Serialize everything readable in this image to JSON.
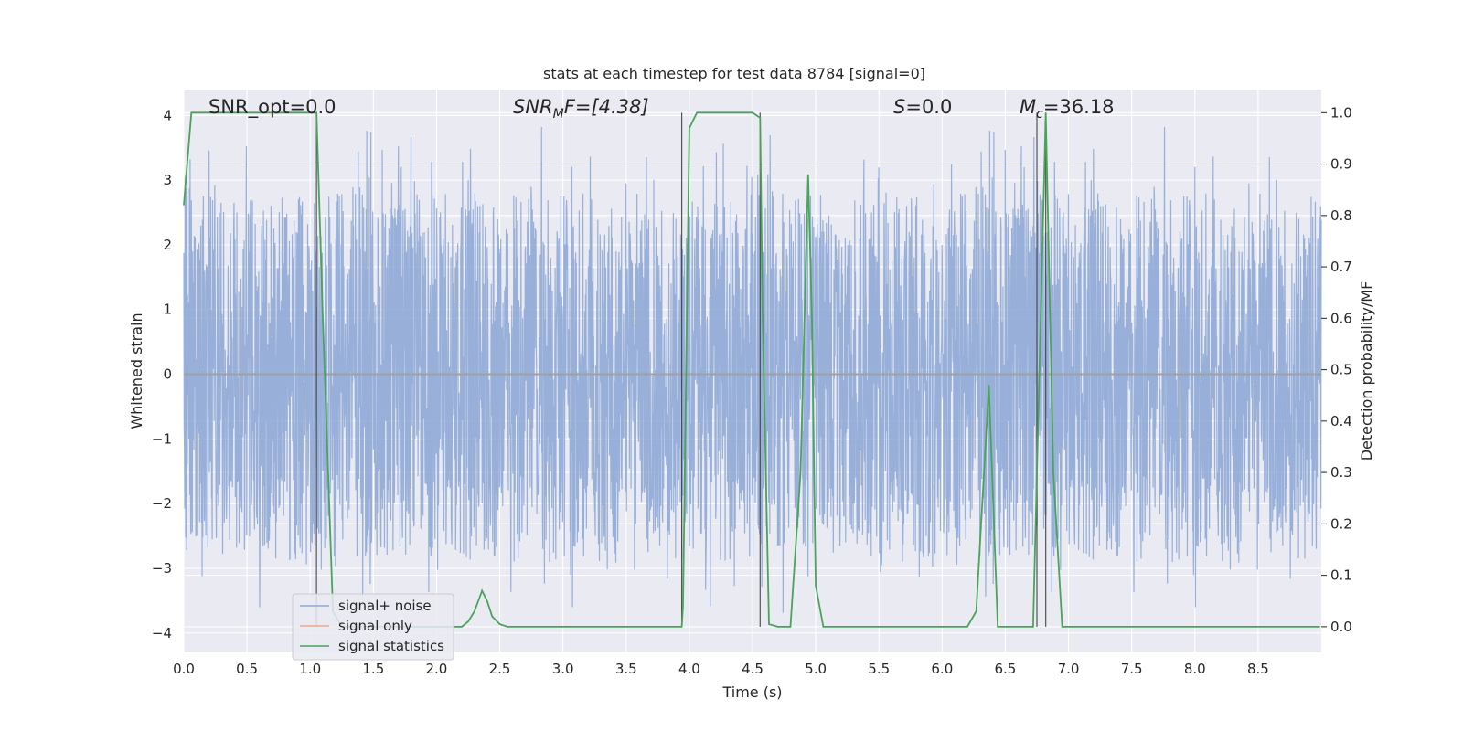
{
  "chart_data": {
    "type": "line",
    "title": "stats at each timestep for test data 8784 [signal=0]",
    "xlabel": "Time (s)",
    "ylabel_left": "Whitened strain",
    "ylabel_right": "Detection probability/MF",
    "xlim": [
      0.0,
      9.0
    ],
    "ylim_left": [
      -4.3,
      4.4
    ],
    "ylim_right": [
      -0.05,
      1.045
    ],
    "x_ticks": [
      "0.0",
      "0.5",
      "1.0",
      "1.5",
      "2.0",
      "2.5",
      "3.0",
      "3.5",
      "4.0",
      "4.5",
      "5.0",
      "5.5",
      "6.0",
      "6.5",
      "7.0",
      "7.5",
      "8.0",
      "8.5"
    ],
    "y_left_ticks": [
      "4",
      "3",
      "2",
      "1",
      "0",
      "−1",
      "−2",
      "−3",
      "−4"
    ],
    "y_right_ticks": [
      "1.0",
      "0.9",
      "0.8",
      "0.7",
      "0.6",
      "0.5",
      "0.4",
      "0.3",
      "0.2",
      "0.1",
      "0.0"
    ],
    "grid": true,
    "annotations": {
      "snr_opt": "SNR_opt=0.0",
      "snr_mf_base": "SNR",
      "snr_mf_sub": "M",
      "snr_mf_rest": "F=[4.38]",
      "s_base": "S",
      "s_rest": "=0.0",
      "mc_base": "M",
      "mc_sub": "c",
      "mc_rest": "=36.18"
    },
    "legend": {
      "position": "lower-left",
      "entries": [
        {
          "label": "signal+ noise",
          "color": "#8faad6"
        },
        {
          "label": "signal only",
          "color": "#f0a58a"
        },
        {
          "label": "signal statistics",
          "color": "#4aa35a"
        }
      ]
    },
    "vertical_markers_x": [
      1.05,
      3.94,
      4.56,
      6.75,
      6.82
    ],
    "series": [
      {
        "name": "signal+ noise",
        "color": "#8faad6",
        "noise_envelope": {
          "core_amplitude": 1.6,
          "max_positive": 3.85,
          "min_negative": -3.95,
          "samples": 3600
        }
      },
      {
        "name": "signal only",
        "color": "#f0a58a",
        "values_constant": 0
      },
      {
        "name": "signal statistics",
        "color": "#4aa35a",
        "x": [
          0.0,
          0.06,
          0.1,
          0.2,
          0.5,
          1.0,
          1.05,
          1.1,
          1.18,
          1.25,
          1.4,
          2.0,
          2.2,
          2.25,
          2.3,
          2.36,
          2.4,
          2.44,
          2.5,
          2.56,
          3.0,
          3.5,
          3.94,
          3.95,
          4.0,
          4.06,
          4.2,
          4.5,
          4.56,
          4.58,
          4.63,
          4.7,
          4.8,
          4.88,
          4.94,
          4.97,
          5.0,
          5.06,
          5.5,
          6.2,
          6.27,
          6.37,
          6.44,
          6.6,
          6.72,
          6.82,
          6.88,
          6.95,
          7.5,
          8.5,
          8.99
        ],
        "values": [
          0.82,
          1.0,
          1.0,
          1.0,
          1.0,
          1.0,
          1.0,
          0.6,
          0.03,
          0.0,
          0.0,
          0.0,
          0.0,
          0.01,
          0.03,
          0.07,
          0.05,
          0.02,
          0.005,
          0.0,
          0.0,
          0.0,
          0.0,
          0.04,
          0.97,
          1.0,
          1.0,
          1.0,
          0.99,
          0.6,
          0.005,
          0.0,
          0.0,
          0.3,
          0.88,
          0.6,
          0.08,
          0.0,
          0.0,
          0.0,
          0.03,
          0.47,
          0.0,
          0.0,
          0.0,
          1.0,
          0.3,
          0.0,
          0.0,
          0.0,
          0.0
        ]
      }
    ]
  }
}
